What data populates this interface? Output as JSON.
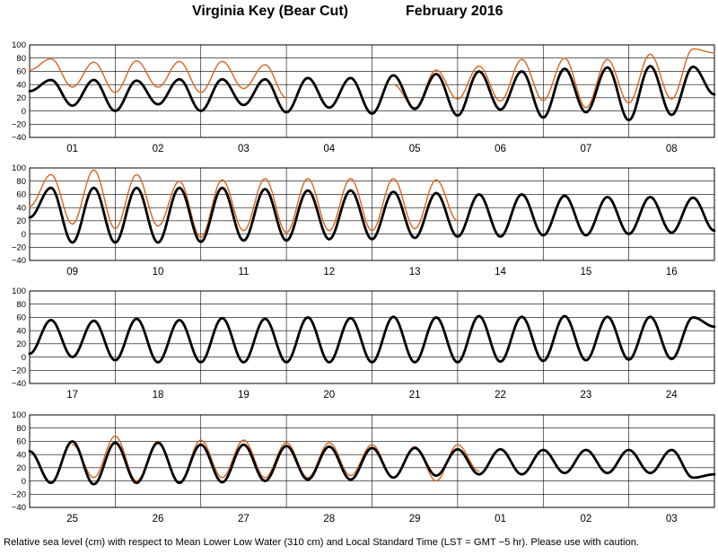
{
  "title": {
    "station": "Virginia Key (Bear Cut)",
    "period": "February   2016"
  },
  "footnote": "Relative sea level (cm) with respect to Mean Lower Low Water (310 cm) and Local Standard Time (LST = GMT −5 hr). Please use with caution.",
  "colors": {
    "predicted": "#000000",
    "observed": "#d9651e",
    "grid": "#000000"
  },
  "chart_data": [
    {
      "type": "line",
      "ylim": [
        -40,
        100
      ],
      "yticks": [
        "100",
        "80",
        "60",
        "40",
        "20",
        "0",
        "−20",
        "−40"
      ],
      "yticks_values": [
        100,
        80,
        60,
        40,
        20,
        0,
        -20,
        -40
      ],
      "days": [
        "01",
        "02",
        "03",
        "04",
        "05",
        "06",
        "07",
        "08"
      ],
      "series": [
        {
          "role": "predicted",
          "x": [
            0,
            0.25,
            0.5,
            0.75,
            1,
            1.25,
            1.5,
            1.75,
            2,
            2.25,
            2.5,
            2.75,
            3,
            3.25,
            3.5,
            3.75,
            4,
            4.25,
            4.5,
            4.75,
            5,
            5.25,
            5.5,
            5.75,
            6,
            6.25,
            6.5,
            6.75,
            7,
            7.25,
            7.5,
            7.75,
            8
          ],
          "values": [
            30,
            47,
            8,
            47,
            0,
            46,
            10,
            48,
            0,
            48,
            9,
            48,
            -2,
            50,
            5,
            50,
            -4,
            54,
            3,
            56,
            -7,
            60,
            2,
            60,
            -10,
            64,
            -2,
            66,
            -14,
            68,
            -6,
            67,
            25
          ]
        },
        {
          "role": "observed",
          "x": [
            0,
            0.25,
            0.5,
            0.75,
            1,
            1.25,
            1.5,
            1.75,
            2,
            2.25,
            2.5,
            2.75,
            3,
            3.25,
            3.5,
            3.75,
            4,
            4.25,
            4.5,
            4.75,
            5,
            5.25,
            5.5,
            5.75,
            6,
            6.25,
            6.5,
            6.75,
            7,
            7.25,
            7.5,
            7.75,
            8
          ],
          "values": [
            62,
            79,
            36,
            74,
            28,
            76,
            36,
            75,
            28,
            75,
            34,
            70,
            20,
            null,
            null,
            null,
            null,
            40,
            5,
            62,
            18,
            68,
            15,
            78,
            16,
            80,
            5,
            78,
            12,
            86,
            18,
            94,
            88
          ]
        }
      ]
    },
    {
      "type": "line",
      "ylim": [
        -40,
        100
      ],
      "yticks": [
        "100",
        "80",
        "60",
        "40",
        "20",
        "0",
        "−20",
        "−40"
      ],
      "yticks_values": [
        100,
        80,
        60,
        40,
        20,
        0,
        -20,
        -40
      ],
      "days": [
        "09",
        "10",
        "11",
        "12",
        "13",
        "14",
        "15",
        "16"
      ],
      "series": [
        {
          "role": "predicted",
          "x": [
            0,
            0.25,
            0.5,
            0.75,
            1,
            1.25,
            1.5,
            1.75,
            2,
            2.25,
            2.5,
            2.75,
            3,
            3.25,
            3.5,
            3.75,
            4,
            4.25,
            4.5,
            4.75,
            5,
            5.25,
            5.5,
            5.75,
            6,
            6.25,
            6.5,
            6.75,
            7,
            7.25,
            7.5,
            7.75,
            8
          ],
          "values": [
            25,
            70,
            -13,
            70,
            -13,
            70,
            -13,
            70,
            -12,
            70,
            -10,
            68,
            -10,
            66,
            -8,
            66,
            -8,
            64,
            -6,
            62,
            -4,
            60,
            -4,
            60,
            -2,
            58,
            -2,
            56,
            0,
            56,
            2,
            55,
            5
          ]
        },
        {
          "role": "observed",
          "x": [
            0,
            0.25,
            0.5,
            0.75,
            1,
            1.25,
            1.5,
            1.75,
            2,
            2.25,
            2.5,
            2.75,
            3,
            3.25,
            3.5,
            3.75,
            4,
            4.25,
            4.5,
            4.75,
            5
          ],
          "values": [
            42,
            90,
            15,
            97,
            8,
            90,
            12,
            80,
            -5,
            82,
            5,
            84,
            2,
            84,
            5,
            84,
            5,
            84,
            8,
            82,
            20
          ]
        }
      ]
    },
    {
      "type": "line",
      "ylim": [
        -40,
        100
      ],
      "yticks": [
        "100",
        "80",
        "60",
        "40",
        "20",
        "0",
        "−20",
        "−40"
      ],
      "yticks_values": [
        100,
        80,
        60,
        40,
        20,
        0,
        -20,
        -40
      ],
      "days": [
        "17",
        "18",
        "19",
        "20",
        "21",
        "22",
        "23",
        "24"
      ],
      "series": [
        {
          "role": "predicted",
          "x": [
            0,
            0.25,
            0.5,
            0.75,
            1,
            1.25,
            1.5,
            1.75,
            2,
            2.25,
            2.5,
            2.75,
            3,
            3.25,
            3.5,
            3.75,
            4,
            4.25,
            4.5,
            4.75,
            5,
            5.25,
            5.5,
            5.75,
            6,
            6.25,
            6.5,
            6.75,
            7,
            7.25,
            7.5,
            7.75,
            8
          ],
          "values": [
            5,
            56,
            0,
            55,
            -5,
            58,
            -8,
            56,
            -8,
            59,
            -8,
            58,
            -8,
            60,
            -8,
            59,
            -8,
            61,
            -8,
            60,
            -8,
            62,
            -7,
            61,
            -6,
            62,
            -5,
            61,
            -4,
            61,
            -3,
            60,
            46
          ]
        }
      ]
    },
    {
      "type": "line",
      "ylim": [
        -40,
        100
      ],
      "yticks": [
        "100",
        "80",
        "60",
        "40",
        "20",
        "0",
        "−20",
        "−40"
      ],
      "yticks_values": [
        100,
        80,
        60,
        40,
        20,
        0,
        -20,
        -40
      ],
      "days": [
        "25",
        "26",
        "27",
        "28",
        "29",
        "01",
        "02",
        "03"
      ],
      "series": [
        {
          "role": "predicted",
          "x": [
            0,
            0.25,
            0.5,
            0.75,
            1,
            1.25,
            1.5,
            1.75,
            2,
            2.25,
            2.5,
            2.75,
            3,
            3.25,
            3.5,
            3.75,
            4,
            4.25,
            4.5,
            4.75,
            5,
            5.25,
            5.5,
            5.75,
            6,
            6.25,
            6.5,
            6.75,
            7,
            7.25,
            7.5,
            7.75,
            8
          ],
          "values": [
            45,
            -3,
            60,
            -5,
            58,
            -3,
            58,
            -3,
            55,
            -2,
            55,
            0,
            53,
            2,
            52,
            2,
            50,
            5,
            50,
            8,
            48,
            10,
            48,
            10,
            47,
            12,
            47,
            12,
            47,
            12,
            47,
            5,
            10
          ]
        },
        {
          "role": "observed",
          "x": [
            0.5,
            0.75,
            1,
            1.25,
            1.5,
            1.75,
            2,
            2.25,
            2.5,
            2.75,
            3,
            3.25,
            3.5,
            3.75,
            4,
            4.25,
            4.5,
            4.75,
            5,
            5.25
          ],
          "values": [
            55,
            5,
            68,
            0,
            60,
            -2,
            62,
            5,
            62,
            5,
            58,
            5,
            58,
            8,
            55,
            5,
            52,
            0,
            55,
            15
          ]
        }
      ]
    }
  ]
}
